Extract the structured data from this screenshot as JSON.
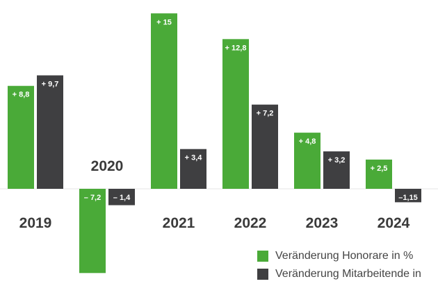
{
  "chart_data": {
    "type": "bar",
    "categories": [
      "2019",
      "2020",
      "2021",
      "2022",
      "2023",
      "2024"
    ],
    "series": [
      {
        "name": "Veränderung Honorare in %",
        "values": [
          8.8,
          -7.2,
          15,
          12.8,
          4.8,
          2.5
        ],
        "labels": [
          "+ 8,8",
          "– 7,2",
          "+ 15",
          "+ 12,8",
          "+ 4,8",
          "+ 2,5"
        ],
        "color": "#4aaa38"
      },
      {
        "name": "Veränderung Mitarbeitende in",
        "values": [
          9.7,
          -1.4,
          3.4,
          7.2,
          3.2,
          -1.15
        ],
        "labels": [
          "+ 9,7",
          "– 1,4",
          "+ 3,4",
          "+ 7,2",
          "+ 3,2",
          "–1,15"
        ],
        "color": "#3f3f41"
      }
    ],
    "title": "",
    "xlabel": "",
    "ylabel": "",
    "ylim": [
      -7.5,
      15.5
    ],
    "grid": false,
    "legend_position": "bottom-right"
  }
}
